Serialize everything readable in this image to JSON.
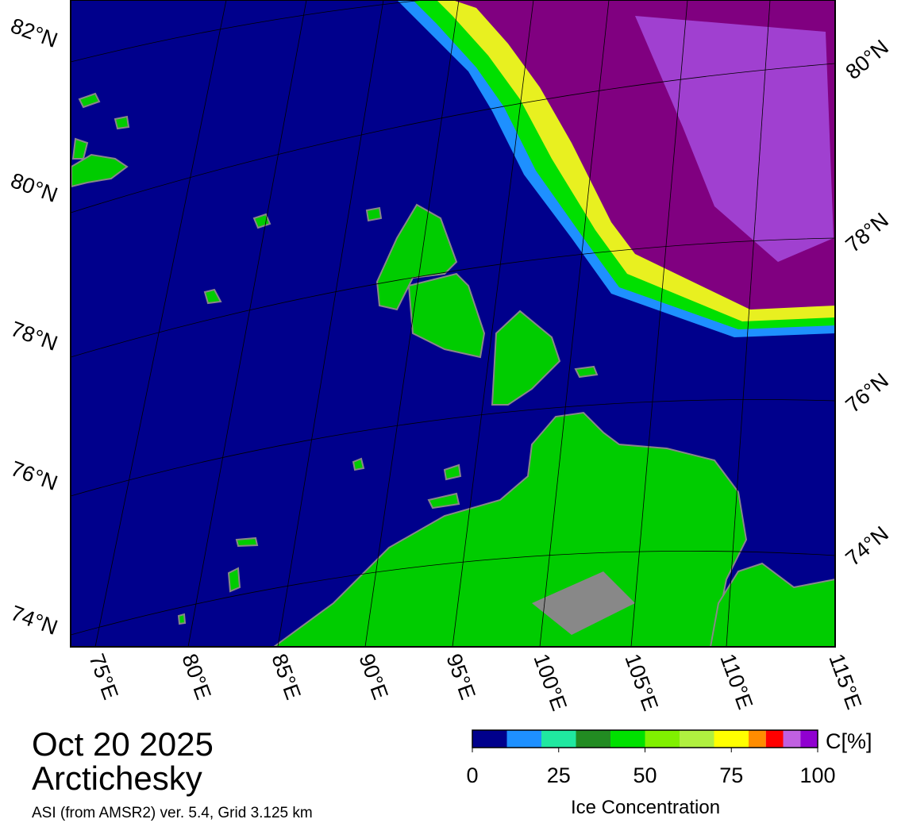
{
  "map": {
    "lat_labels_left": [
      "82°N",
      "80°N",
      "78°N",
      "76°N",
      "74°N"
    ],
    "lat_labels_right": [
      "80°N",
      "78°N",
      "76°N",
      "74°N"
    ],
    "lon_labels": [
      "75°E",
      "80°E",
      "85°E",
      "90°E",
      "95°E",
      "100°E",
      "105°E",
      "110°E",
      "115°E"
    ]
  },
  "caption": {
    "date": "Oct 20 2025",
    "region": "Arctichesky",
    "source": "ASI (from AMSR2) ver. 5.4,  Grid 3.125 km"
  },
  "colorbar": {
    "unit": "C[%]",
    "title": "Ice Concentration",
    "lim": [
      0,
      100
    ],
    "ticks": [
      0,
      25,
      50,
      75,
      100
    ],
    "bounds": [
      0,
      10,
      20,
      30,
      40,
      50,
      60,
      70,
      80,
      85,
      90,
      95,
      100
    ],
    "colors": [
      "#00008c",
      "#1e90ff",
      "#20e8a0",
      "#228b22",
      "#00e000",
      "#80f000",
      "#b0f040",
      "#ffff00",
      "#ff8c00",
      "#ff0000",
      "#c060e0",
      "#9000d0"
    ]
  }
}
